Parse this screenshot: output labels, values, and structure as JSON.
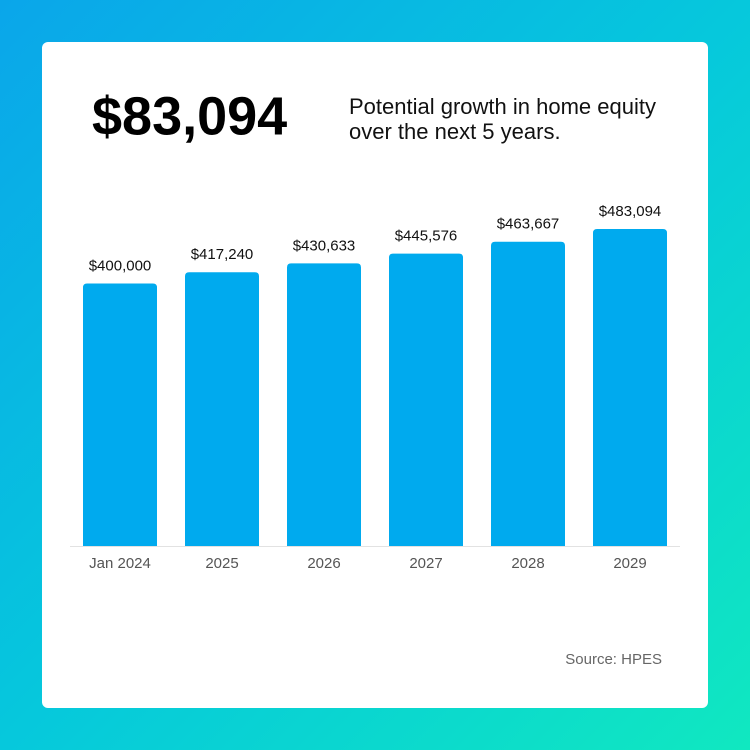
{
  "chart_data": {
    "type": "bar",
    "headline": "$83,094",
    "subtitle": "Potential growth in home equity over the next 5 years.",
    "categories": [
      "Jan 2024",
      "2025",
      "2026",
      "2027",
      "2028",
      "2029"
    ],
    "values": [
      400000,
      417240,
      430633,
      445576,
      463667,
      483094
    ],
    "value_labels": [
      "$400,000",
      "$417,240",
      "$430,633",
      "$445,576",
      "$463,667",
      "$483,094"
    ],
    "color": "#00aaee",
    "source": "Source: HPES"
  }
}
